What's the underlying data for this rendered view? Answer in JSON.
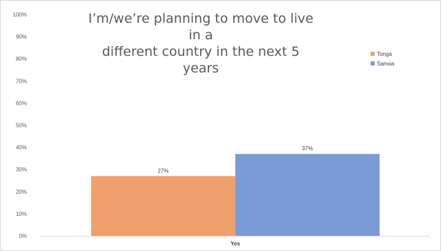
{
  "chart_data": {
    "type": "bar",
    "title_lines": [
      "I’m/we’re planning to move to live in a",
      "different country in the next 5 years"
    ],
    "categories": [
      "Yes"
    ],
    "series": [
      {
        "name": "Tonga",
        "color": "#f0a06c",
        "values": [
          27
        ],
        "labels": [
          "27%"
        ]
      },
      {
        "name": "Samoa",
        "color": "#7b9bd6",
        "values": [
          37
        ],
        "labels": [
          "37%"
        ]
      }
    ],
    "yticks": [
      {
        "value": 0,
        "label": "0%"
      },
      {
        "value": 10,
        "label": "10%"
      },
      {
        "value": 20,
        "label": "20%"
      },
      {
        "value": 30,
        "label": "30%"
      },
      {
        "value": 40,
        "label": "40%"
      },
      {
        "value": 50,
        "label": "50%"
      },
      {
        "value": 60,
        "label": "60%"
      },
      {
        "value": 70,
        "label": "70%"
      },
      {
        "value": 80,
        "label": "80%"
      },
      {
        "value": 90,
        "label": "90%"
      },
      {
        "value": 100,
        "label": "100%"
      }
    ],
    "ylim": [
      0,
      100
    ],
    "grid": false,
    "legend_position": "top-right"
  }
}
